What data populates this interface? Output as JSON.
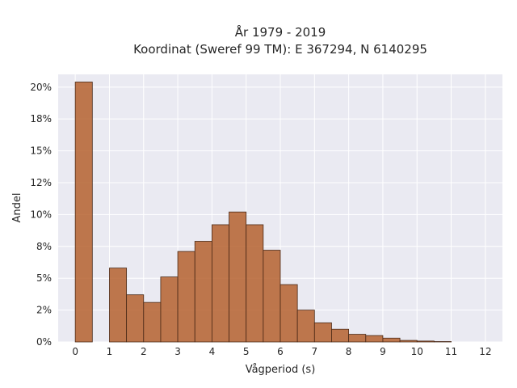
{
  "chart_data": {
    "type": "bar",
    "title_lines": [
      "År 1979 - 2019",
      "Koordinat (Sweref 99 TM): E 367294, N 6140295"
    ],
    "xlabel": "Vågperiod (s)",
    "ylabel": "Andel",
    "x_ticks": [
      "0",
      "1",
      "2",
      "3",
      "4",
      "5",
      "6",
      "7",
      "8",
      "9",
      "10",
      "11",
      "12"
    ],
    "y_ticks": [
      "0%",
      "2%",
      "5%",
      "8%",
      "10%",
      "12%",
      "15%",
      "18%",
      "20%"
    ],
    "y_tick_values": [
      0,
      2.5,
      5,
      7.5,
      10,
      12.5,
      15,
      17.5,
      20
    ],
    "xlim": [
      -0.5,
      12.5
    ],
    "ylim": [
      0,
      21
    ],
    "bin_width": 0.5,
    "bins": [
      {
        "x0": 0.0,
        "value": 20.4
      },
      {
        "x0": 1.0,
        "value": 5.8
      },
      {
        "x0": 1.5,
        "value": 3.7
      },
      {
        "x0": 2.0,
        "value": 3.1
      },
      {
        "x0": 2.5,
        "value": 5.1
      },
      {
        "x0": 3.0,
        "value": 7.1
      },
      {
        "x0": 3.5,
        "value": 7.9
      },
      {
        "x0": 4.0,
        "value": 9.2
      },
      {
        "x0": 4.5,
        "value": 10.2
      },
      {
        "x0": 5.0,
        "value": 9.2
      },
      {
        "x0": 5.5,
        "value": 7.2
      },
      {
        "x0": 6.0,
        "value": 4.5
      },
      {
        "x0": 6.5,
        "value": 2.5
      },
      {
        "x0": 7.0,
        "value": 1.5
      },
      {
        "x0": 7.5,
        "value": 1.0
      },
      {
        "x0": 8.0,
        "value": 0.6
      },
      {
        "x0": 8.5,
        "value": 0.5
      },
      {
        "x0": 9.0,
        "value": 0.3
      },
      {
        "x0": 9.5,
        "value": 0.12
      },
      {
        "x0": 10.0,
        "value": 0.07
      },
      {
        "x0": 10.5,
        "value": 0.03
      }
    ],
    "grid": true,
    "colors": {
      "bar_fill": "#b5612f",
      "bar_edge": "#4a2a18",
      "plot_background": "#eaeaf2",
      "grid": "#ffffff"
    }
  }
}
